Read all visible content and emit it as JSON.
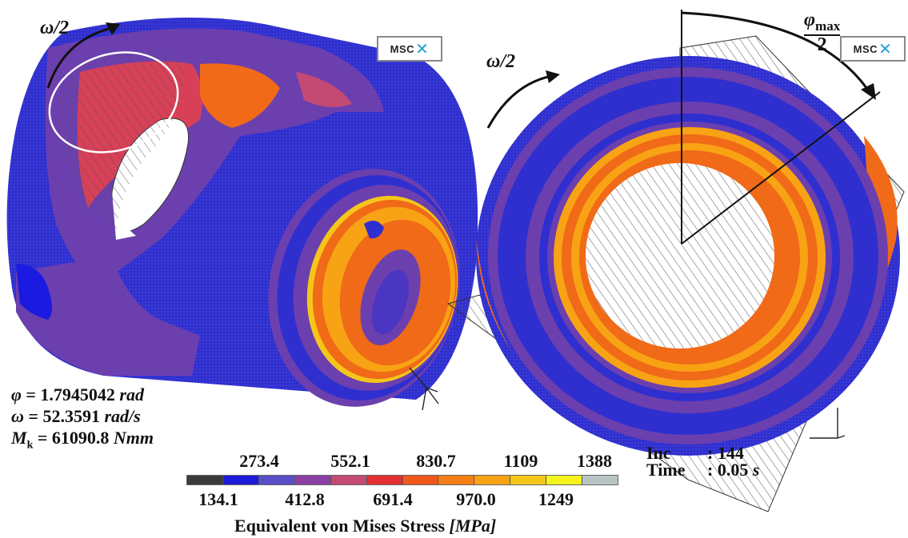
{
  "labels": {
    "omega_half_left": "ω/2",
    "omega_half_right": "ω/2",
    "phi_max_symbol": "φ",
    "phi_max_sub": "max",
    "phi_max_den": "2",
    "logo_text": "MSC",
    "logo_mark": "✕"
  },
  "params": {
    "phi_sym": "φ",
    "phi_eq": " = 1.7945042 ",
    "phi_unit": "rad",
    "omega_sym": "ω",
    "omega_eq": " = 52.3591 ",
    "omega_unit": "rad/s",
    "mk_sym": "M",
    "mk_sub": "k",
    "mk_eq": " = 61090.8 ",
    "mk_unit": "Nmm"
  },
  "increment": {
    "inc_label": "Inc",
    "inc_value": ": 144",
    "time_label": "Time",
    "time_value": ": 0.05 ",
    "time_unit": "s"
  },
  "legend": {
    "title": "Equivalent von Mises Stress ",
    "unit": "[MPa]",
    "top_ticks": [
      "273.4",
      "552.1",
      "830.7",
      "1109",
      "1388"
    ],
    "bottom_ticks": [
      "134.1",
      "412.8",
      "691.4",
      "970.0",
      "1249"
    ],
    "colors": [
      "#3a3a3a",
      "#1c1cd8",
      "#5a4ec8",
      "#8b3fa2",
      "#c44a74",
      "#e23030",
      "#f0581c",
      "#f57e14",
      "#f8a314",
      "#f5c61a",
      "#f4f41c",
      "#b8c4c4"
    ]
  }
}
